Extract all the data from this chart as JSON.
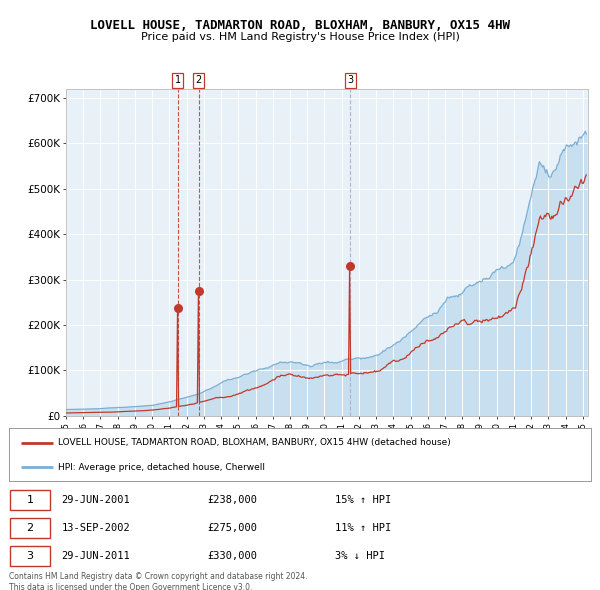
{
  "title": "LOVELL HOUSE, TADMARTON ROAD, BLOXHAM, BANBURY, OX15 4HW",
  "subtitle": "Price paid vs. HM Land Registry's House Price Index (HPI)",
  "xlim": [
    1995.0,
    2025.3
  ],
  "ylim": [
    0,
    720000
  ],
  "yticks": [
    0,
    100000,
    200000,
    300000,
    400000,
    500000,
    600000,
    700000
  ],
  "ytick_labels": [
    "£0",
    "£100K",
    "£200K",
    "£300K",
    "£400K",
    "£500K",
    "£600K",
    "£700K"
  ],
  "xtick_years": [
    1995,
    1996,
    1997,
    1998,
    1999,
    2000,
    2001,
    2002,
    2003,
    2004,
    2005,
    2006,
    2007,
    2008,
    2009,
    2010,
    2011,
    2012,
    2013,
    2014,
    2015,
    2016,
    2017,
    2018,
    2019,
    2020,
    2021,
    2022,
    2023,
    2024,
    2025
  ],
  "hpi_color": "#7bafd4",
  "hpi_fill_color": "#c8dff0",
  "price_color": "#c0392b",
  "plot_bg_color": "#e8f0f8",
  "legend_label_price": "LOVELL HOUSE, TADMARTON ROAD, BLOXHAM, BANBURY, OX15 4HW (detached house)",
  "legend_label_hpi": "HPI: Average price, detached house, Cherwell",
  "sales": [
    {
      "num": 1,
      "date": "29-JUN-2001",
      "price": 238000,
      "year": 2001.49,
      "hpi_diff": "15% ↑ HPI",
      "vline_color": "#c0392b"
    },
    {
      "num": 2,
      "date": "13-SEP-2002",
      "price": 275000,
      "year": 2002.71,
      "hpi_diff": "11% ↑ HPI",
      "vline_color": "#c0392b"
    },
    {
      "num": 3,
      "date": "29-JUN-2011",
      "price": 330000,
      "year": 2011.49,
      "hpi_diff": "3% ↓ HPI",
      "vline_color": "#aaaacc"
    }
  ],
  "footer": "Contains HM Land Registry data © Crown copyright and database right 2024.\nThis data is licensed under the Open Government Licence v3.0.",
  "title_fontsize": 9.0,
  "subtitle_fontsize": 8.0
}
